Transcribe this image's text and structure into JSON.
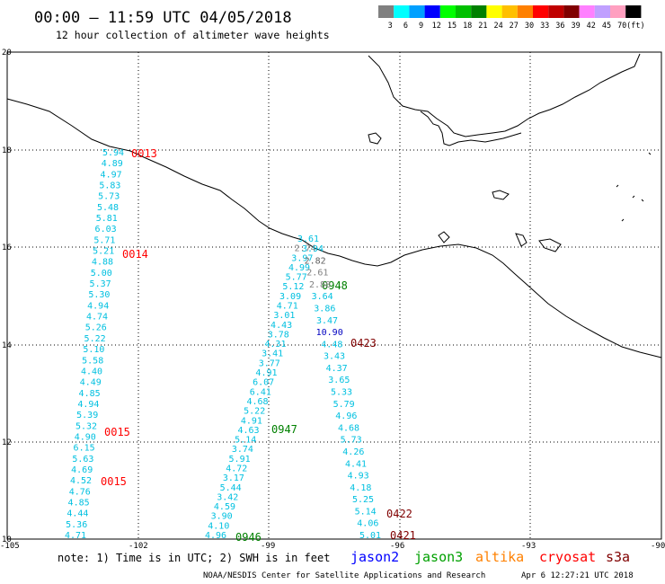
{
  "header": {
    "title": "00:00 – 11:59 UTC 04/05/2018",
    "subtitle": "12 hour collection of altimeter wave heights"
  },
  "legend": {
    "unit": "(ft)",
    "bins": [
      {
        "label": "3",
        "color": "#808080"
      },
      {
        "label": "6",
        "color": "#00ffff"
      },
      {
        "label": "9",
        "color": "#00a0ff"
      },
      {
        "label": "12",
        "color": "#0000ff"
      },
      {
        "label": "15",
        "color": "#00ff00"
      },
      {
        "label": "18",
        "color": "#00c000"
      },
      {
        "label": "21",
        "color": "#008000"
      },
      {
        "label": "24",
        "color": "#ffff00"
      },
      {
        "label": "27",
        "color": "#ffc000"
      },
      {
        "label": "30",
        "color": "#ff8000"
      },
      {
        "label": "33",
        "color": "#ff0000"
      },
      {
        "label": "36",
        "color": "#c00000"
      },
      {
        "label": "39",
        "color": "#800000"
      },
      {
        "label": "42",
        "color": "#ff80ff"
      },
      {
        "label": "45",
        "color": "#c0a0ff"
      },
      {
        "label": "70",
        "color": "#ffa0c0"
      },
      {
        "label": "",
        "color": "#000000"
      }
    ]
  },
  "axes": {
    "lon_ticks": [
      "-105",
      "-102",
      "-99",
      "-96",
      "-93",
      "-90"
    ],
    "lat_ticks": [
      "20",
      "18",
      "16",
      "14",
      "12",
      "10"
    ]
  },
  "tracks": [
    {
      "satellite": "cryosat",
      "time_labels": [
        {
          "text": "0013",
          "color": "#ff0000"
        },
        {
          "text": "0014",
          "color": "#ff0000"
        },
        {
          "text": "0015",
          "color": "#ff0000"
        },
        {
          "text": "0015",
          "color": "#ff0000"
        }
      ],
      "values": [
        "5.94",
        "4.89",
        "4.97",
        "5.83",
        "5.73",
        "5.48",
        "5.81",
        "6.03",
        "5.71",
        "5.21",
        "4.88",
        "5.00",
        "5.37",
        "5.30",
        "4.94",
        "4.74",
        "5.26",
        "5.22",
        "5.10",
        "5.58",
        "4.40",
        "4.49",
        "4.85",
        "4.94",
        "5.39",
        "5.32",
        "4.90",
        "6.15",
        "5.63",
        "4.69",
        "4.52",
        "4.76",
        "4.85",
        "4.44",
        "5.36",
        "4.71"
      ]
    },
    {
      "satellite": "jason3",
      "time_labels": [
        {
          "text": "0948",
          "color": "#008000"
        },
        {
          "text": "0947",
          "color": "#008000"
        },
        {
          "text": "0946",
          "color": "#008000"
        }
      ],
      "values": [
        "3.61",
        "2.74",
        "3.97",
        "4.99",
        "5.77",
        "5.12",
        "3.09",
        "4.71",
        "3.01",
        "4.43",
        "3.78",
        "4.31",
        "3.41",
        "3.77",
        "4.91",
        "6.07",
        "6.41",
        "4.68",
        "5.22",
        "4.91",
        "4.63",
        "5.14",
        "3.74",
        "5.91",
        "4.72",
        "3.17",
        "5.44",
        "3.42",
        "4.59",
        "3.90",
        "4.10",
        "4.96"
      ]
    },
    {
      "satellite": "s3a",
      "time_labels": [
        {
          "text": "0423",
          "color": "#800000"
        },
        {
          "text": "0422",
          "color": "#800000"
        },
        {
          "text": "0421",
          "color": "#800000"
        }
      ],
      "values": [
        "3.94",
        "2.82",
        "2.61",
        "2.88",
        "3.64",
        "3.86",
        "3.47",
        "10.90",
        "4.48",
        "3.43",
        "4.37",
        "3.65",
        "5.33",
        "5.79",
        "4.96",
        "4.68",
        "5.73",
        "4.26",
        "4.41",
        "4.93",
        "4.18",
        "5.25",
        "5.14",
        "4.06",
        "5.01"
      ]
    }
  ],
  "footer": {
    "note": "note: 1) Time is in UTC; 2) SWH is in feet",
    "satellites": [
      {
        "name": "jason2",
        "color": "#0000ff"
      },
      {
        "name": "jason3",
        "color": "#00a000"
      },
      {
        "name": "altika",
        "color": "#ff8000"
      },
      {
        "name": "cryosat",
        "color": "#ff0000"
      },
      {
        "name": "s3a",
        "color": "#800000"
      }
    ],
    "credit": "NOAA/NESDIS Center for Satellite Applications and Research",
    "timestamp": "Apr  6 12:27:21 UTC 2018"
  }
}
